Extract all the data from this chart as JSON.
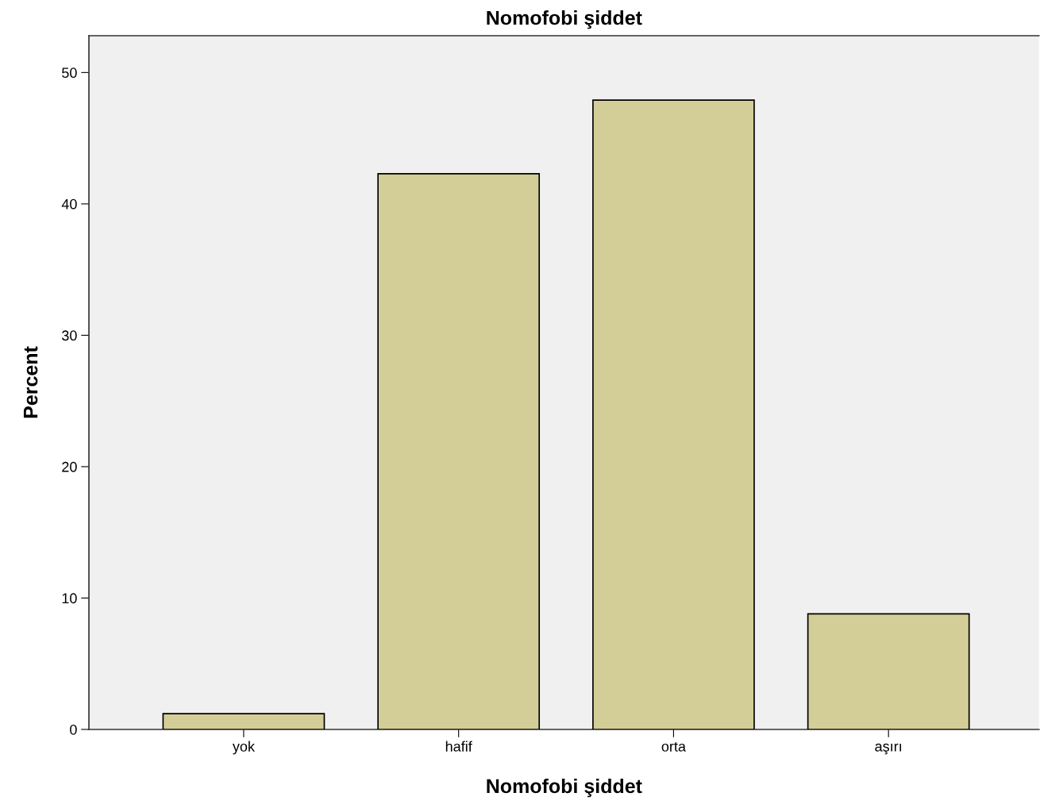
{
  "chart_data": {
    "type": "bar",
    "title": "Nomofobi şiddet",
    "xlabel": "Nomofobi şiddet",
    "ylabel": "Percent",
    "categories": [
      "yok",
      "hafif",
      "orta",
      "aşırı"
    ],
    "values": [
      1.2,
      42.3,
      47.9,
      8.8
    ],
    "color": "#d3ce97",
    "ylim": [
      0,
      52.8
    ],
    "yticks": [
      0,
      10,
      20,
      30,
      40,
      50
    ],
    "grid": false,
    "legend": false
  }
}
